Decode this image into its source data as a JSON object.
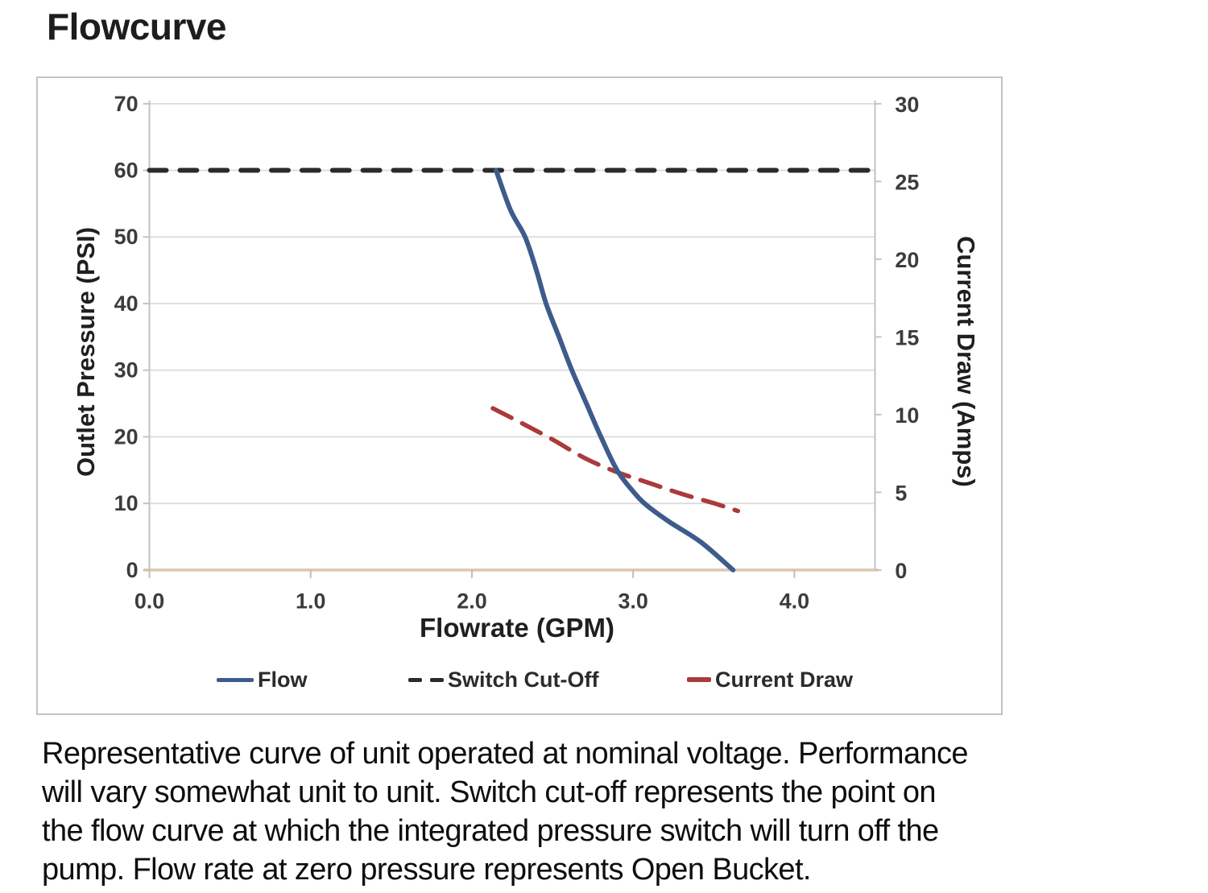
{
  "page": {
    "title": "Flowcurve",
    "description": "Representative curve of unit operated at nominal voltage. Performance\nwill vary somewhat unit to unit. Switch cut-off represents the point on\nthe flow curve at which the integrated pressure switch will turn off the\npump. Flow rate at zero pressure represents Open Bucket."
  },
  "chart_data": {
    "type": "line",
    "title": "Flowcurve",
    "xlabel": "Flowrate (GPM)",
    "ylabel_left": "Outlet Pressure (PSI)",
    "ylabel_right": "Current Draw (Amps)",
    "xlim": [
      0,
      4.5
    ],
    "ylim_left": [
      0,
      70
    ],
    "ylim_right": [
      0,
      30
    ],
    "x_tick_labels": [
      "0.0",
      "1.0",
      "2.0",
      "3.0",
      "4.0"
    ],
    "x_tick_values": [
      0,
      1,
      2,
      3,
      4
    ],
    "y_ticks_left": [
      70,
      60,
      50,
      40,
      30,
      20,
      10,
      0
    ],
    "y_ticks_right": [
      30,
      25,
      20,
      15,
      10,
      5,
      0
    ],
    "grid": "horizontal",
    "legend_position": "bottom",
    "colors": {
      "gridline": "#dcdcdc",
      "axis_gray": "#c3c3c3",
      "x_axis_line": "#dbc8ae",
      "tick_label": "#3c3c3c"
    },
    "series": [
      {
        "name": "Flow",
        "axis": "left",
        "color": "#3d5c8c",
        "style": "solid",
        "dash": "",
        "width": 6,
        "points": [
          [
            2.15,
            60
          ],
          [
            2.24,
            54
          ],
          [
            2.33,
            50
          ],
          [
            2.4,
            45
          ],
          [
            2.46,
            40
          ],
          [
            2.54,
            35
          ],
          [
            2.62,
            30
          ],
          [
            2.71,
            25
          ],
          [
            2.8,
            20
          ],
          [
            2.9,
            15
          ],
          [
            3.0,
            11.8
          ],
          [
            3.08,
            9.8
          ],
          [
            3.22,
            7.3
          ],
          [
            3.42,
            4.2
          ],
          [
            3.62,
            0
          ]
        ]
      },
      {
        "name": "Switch Cut-Off",
        "axis": "left",
        "color": "#2b2b2b",
        "style": "dashed",
        "dash": "21 17",
        "width": 6,
        "points": [
          [
            0,
            60
          ],
          [
            4.5,
            60
          ]
        ]
      },
      {
        "name": "Current Draw",
        "axis": "right",
        "color": "#ab3a3a",
        "style": "dashed",
        "dash": "26 15",
        "width": 5.5,
        "points": [
          [
            2.13,
            10.4
          ],
          [
            2.3,
            9.5
          ],
          [
            2.5,
            8.4
          ],
          [
            2.7,
            7.2
          ],
          [
            2.9,
            6.3
          ],
          [
            3.1,
            5.6
          ],
          [
            3.3,
            4.9
          ],
          [
            3.5,
            4.3
          ],
          [
            3.65,
            3.8
          ]
        ]
      }
    ]
  }
}
